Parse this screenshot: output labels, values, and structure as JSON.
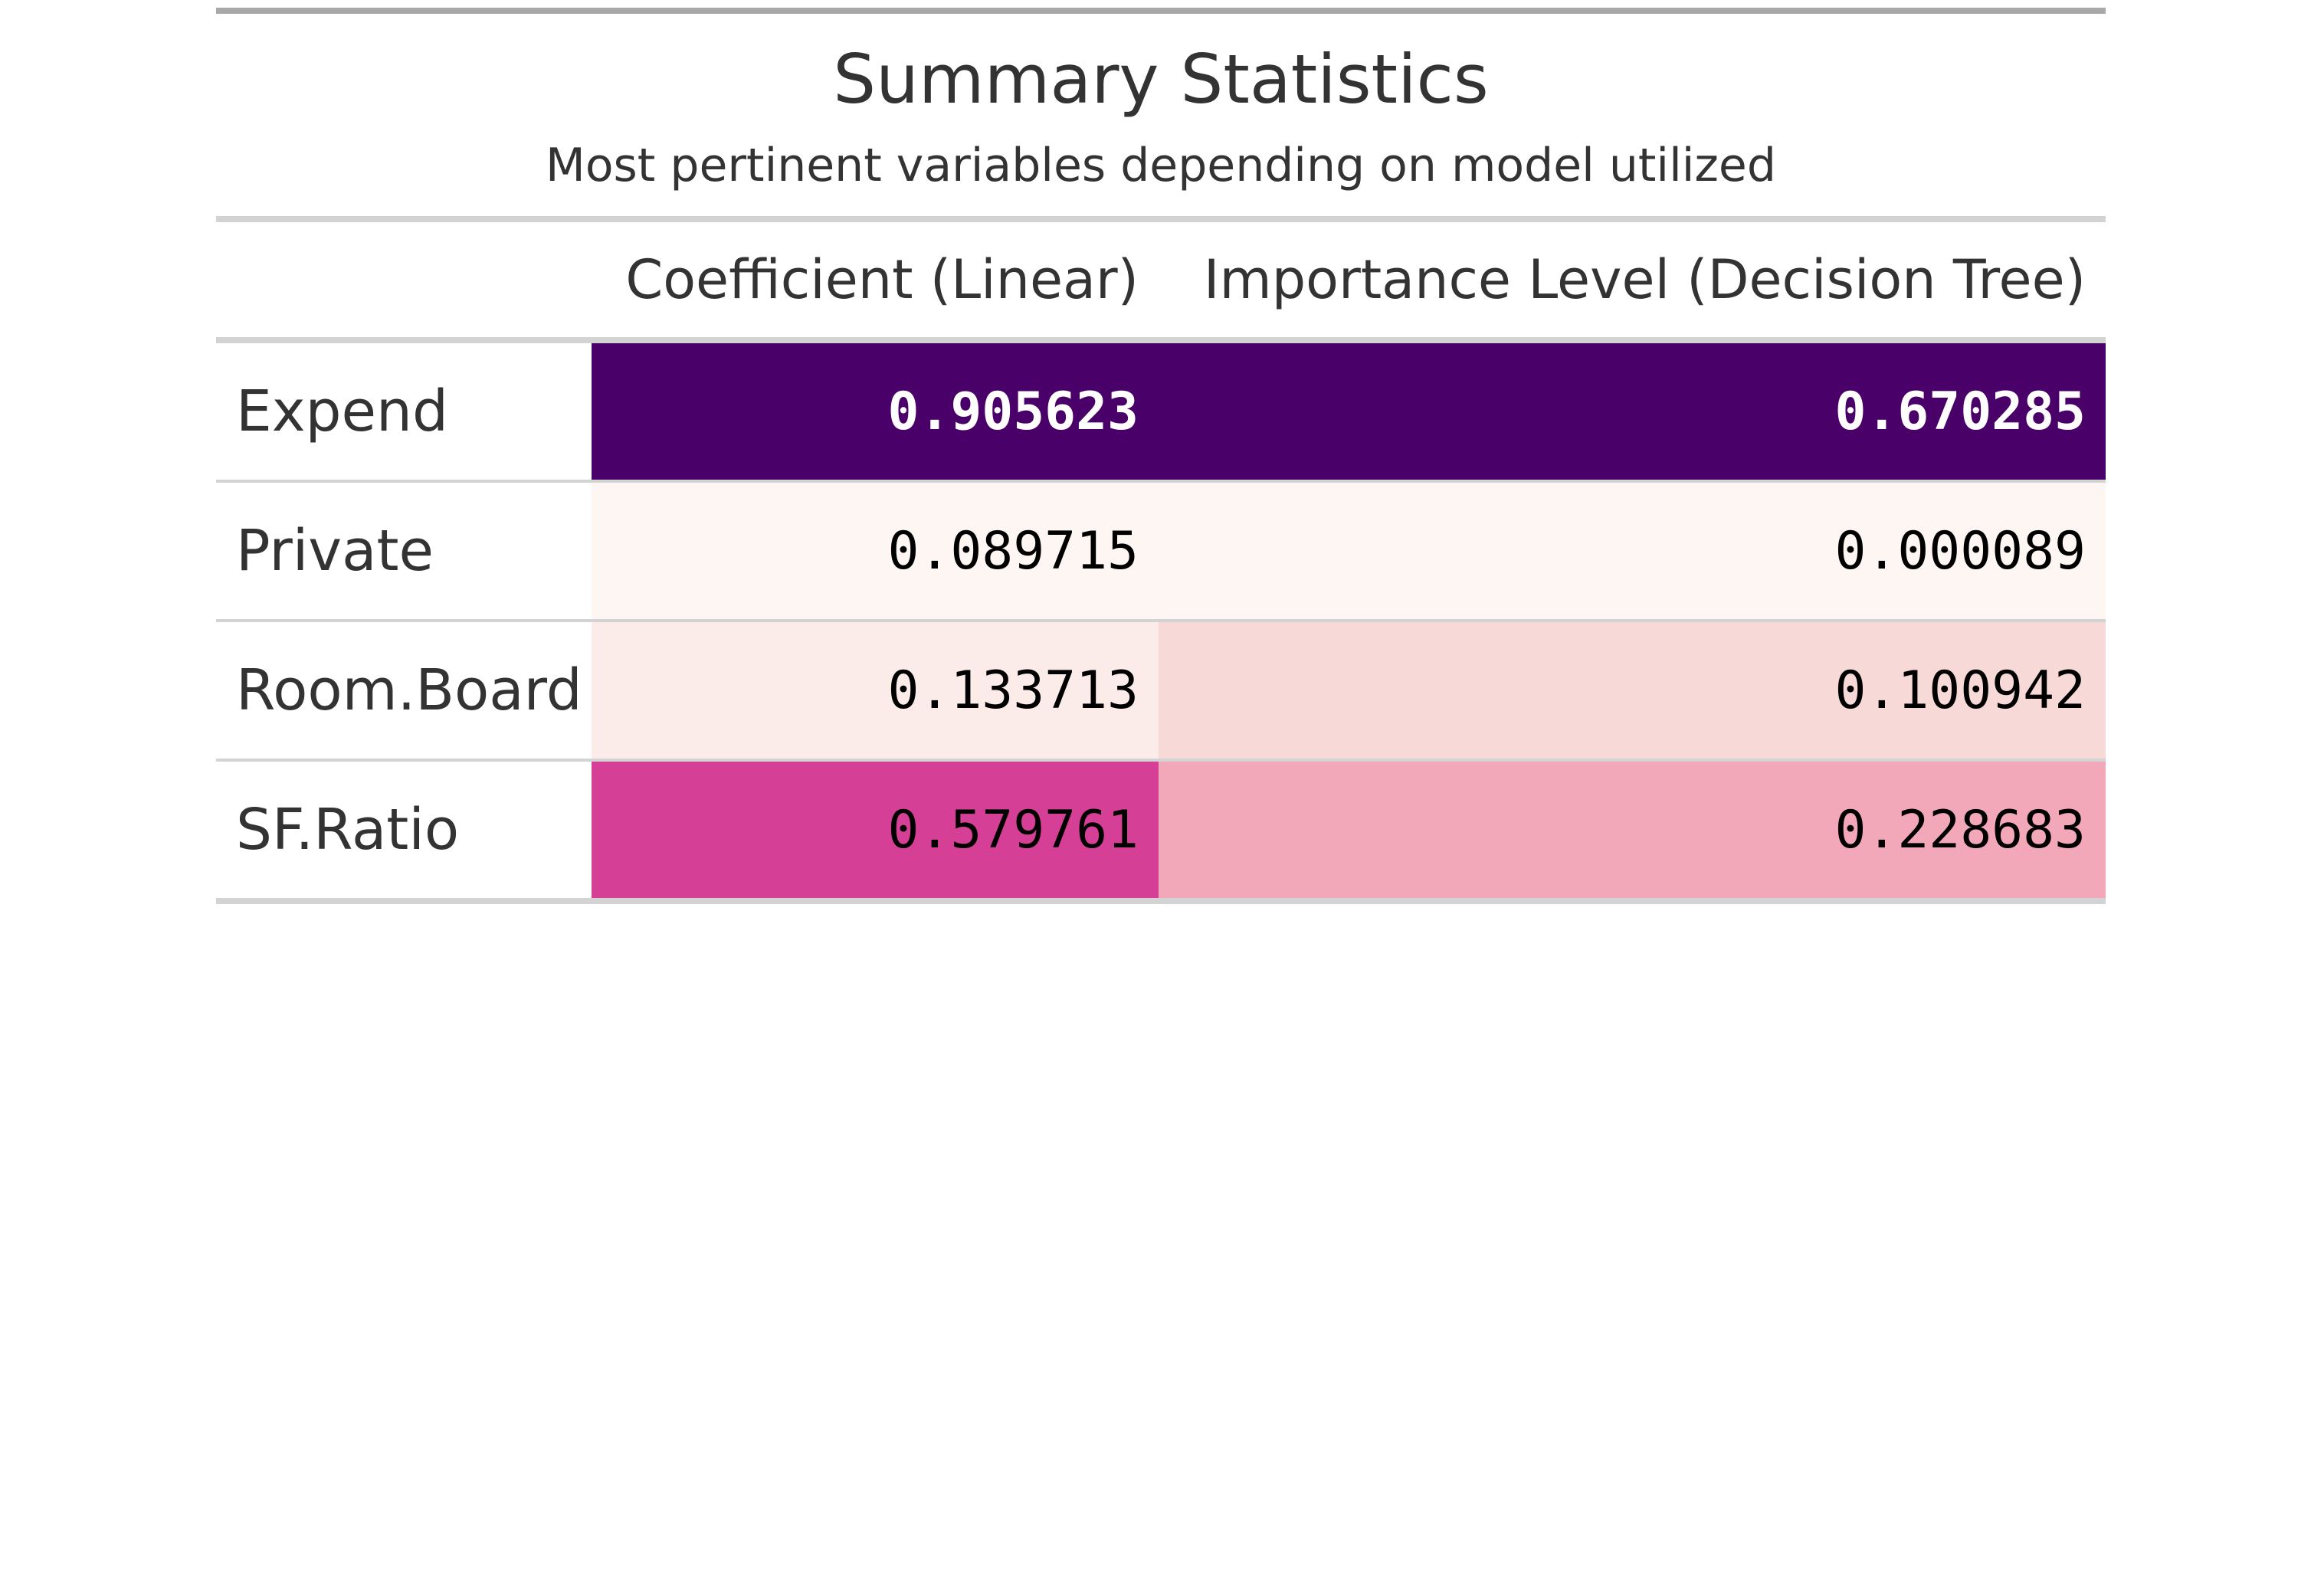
{
  "chart_data": {
    "type": "table",
    "title": "Summary Statistics",
    "subtitle": "Most pertinent variables depending on model utilized",
    "columns": [
      "",
      "Coefficient (Linear)",
      "Importance Level (Decision Tree)"
    ],
    "rows": [
      {
        "label": "Expend",
        "values": [
          "0.905623",
          "0.670285"
        ],
        "colors": [
          "#4a0069",
          "#4a0069"
        ],
        "bold": true
      },
      {
        "label": "Private",
        "values": [
          "0.089715",
          "0.000089"
        ],
        "colors": [
          "#fdf6f3",
          "#fdf6f3"
        ],
        "bold": false
      },
      {
        "label": "Room.Board",
        "values": [
          "0.133713",
          "0.100942"
        ],
        "colors": [
          "#fbebe9",
          "#f7dad7"
        ],
        "bold": false
      },
      {
        "label": "SF.Ratio",
        "values": [
          "0.579761",
          "0.228683"
        ],
        "colors": [
          "#d54096",
          "#f2a8b8"
        ],
        "bold": false
      }
    ]
  }
}
